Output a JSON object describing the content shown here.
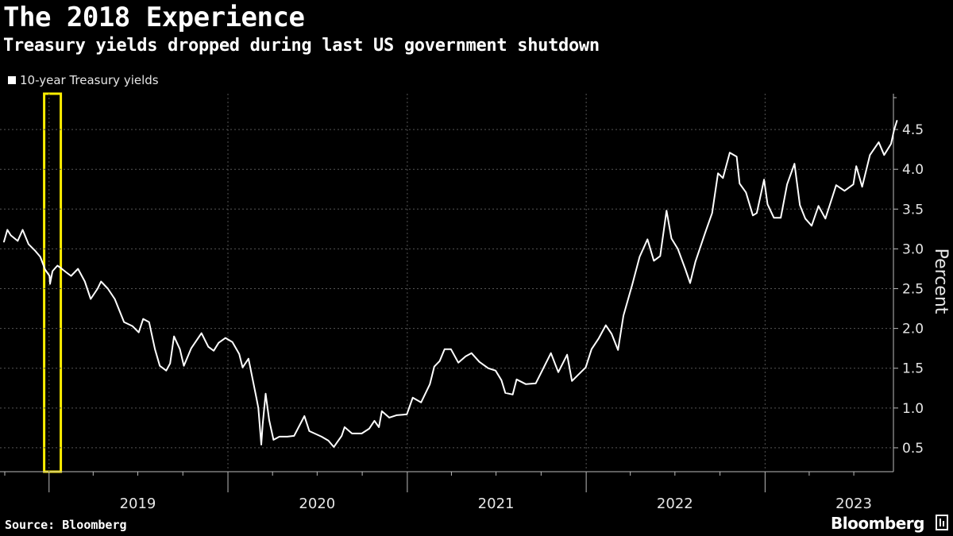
{
  "title": "The 2018 Experience",
  "subtitle": "Treasury yields dropped during last US government shutdown",
  "legend": {
    "label": "10-year Treasury yields",
    "color": "#ffffff"
  },
  "footer": {
    "source": "Source: Bloomberg",
    "brand": "Bloomberg"
  },
  "colors": {
    "background": "#000000",
    "line": "#ffffff",
    "highlight": "#ffee00",
    "grid": "#555555"
  },
  "chart_data": {
    "type": "line",
    "ylabel": "Percent",
    "xlabel": "",
    "ylim": [
      0.2,
      4.95
    ],
    "xlim": [
      "2018-10-01",
      "2023-09-28"
    ],
    "y_ticks": [
      "0.5",
      "1.0",
      "1.5",
      "2.0",
      "2.5",
      "3.0",
      "3.5",
      "4.0",
      "4.5"
    ],
    "x_tick_labels": [
      "2019",
      "2020",
      "2021",
      "2022",
      "2023"
    ],
    "y_axis_position": "right",
    "grid": true,
    "legend_position": "top-left",
    "highlight_period": {
      "start": "2018-12-22",
      "end": "2019-01-25"
    },
    "series": [
      {
        "name": "10-year Treasury yields",
        "points": [
          [
            "2018-10-01",
            3.09
          ],
          [
            "2018-10-08",
            3.24
          ],
          [
            "2018-10-15",
            3.17
          ],
          [
            "2018-10-29",
            3.1
          ],
          [
            "2018-11-08",
            3.24
          ],
          [
            "2018-11-20",
            3.06
          ],
          [
            "2018-12-03",
            2.98
          ],
          [
            "2018-12-14",
            2.9
          ],
          [
            "2018-12-24",
            2.74
          ],
          [
            "2019-01-02",
            2.66
          ],
          [
            "2019-01-03",
            2.56
          ],
          [
            "2019-01-08",
            2.72
          ],
          [
            "2019-01-18",
            2.79
          ],
          [
            "2019-01-25",
            2.76
          ],
          [
            "2019-02-04",
            2.71
          ],
          [
            "2019-02-15",
            2.66
          ],
          [
            "2019-03-01",
            2.75
          ],
          [
            "2019-03-15",
            2.59
          ],
          [
            "2019-03-27",
            2.37
          ],
          [
            "2019-04-10",
            2.5
          ],
          [
            "2019-04-17",
            2.59
          ],
          [
            "2019-05-01",
            2.5
          ],
          [
            "2019-05-15",
            2.37
          ],
          [
            "2019-06-03",
            2.08
          ],
          [
            "2019-06-20",
            2.03
          ],
          [
            "2019-07-03",
            1.95
          ],
          [
            "2019-07-12",
            2.12
          ],
          [
            "2019-07-24",
            2.08
          ],
          [
            "2019-08-05",
            1.74
          ],
          [
            "2019-08-15",
            1.53
          ],
          [
            "2019-08-28",
            1.47
          ],
          [
            "2019-09-05",
            1.56
          ],
          [
            "2019-09-13",
            1.9
          ],
          [
            "2019-09-25",
            1.74
          ],
          [
            "2019-10-03",
            1.53
          ],
          [
            "2019-10-18",
            1.75
          ],
          [
            "2019-11-08",
            1.94
          ],
          [
            "2019-11-22",
            1.77
          ],
          [
            "2019-12-03",
            1.72
          ],
          [
            "2019-12-13",
            1.82
          ],
          [
            "2019-12-27",
            1.88
          ],
          [
            "2020-01-10",
            1.83
          ],
          [
            "2020-01-24",
            1.68
          ],
          [
            "2020-01-31",
            1.51
          ],
          [
            "2020-02-12",
            1.62
          ],
          [
            "2020-02-28",
            1.13
          ],
          [
            "2020-03-03",
            1.0
          ],
          [
            "2020-03-09",
            0.54
          ],
          [
            "2020-03-12",
            0.8
          ],
          [
            "2020-03-18",
            1.18
          ],
          [
            "2020-03-25",
            0.85
          ],
          [
            "2020-04-03",
            0.6
          ],
          [
            "2020-04-15",
            0.64
          ],
          [
            "2020-05-01",
            0.64
          ],
          [
            "2020-05-15",
            0.65
          ],
          [
            "2020-06-05",
            0.9
          ],
          [
            "2020-06-15",
            0.71
          ],
          [
            "2020-07-10",
            0.64
          ],
          [
            "2020-07-24",
            0.59
          ],
          [
            "2020-08-04",
            0.51
          ],
          [
            "2020-08-20",
            0.65
          ],
          [
            "2020-08-26",
            0.76
          ],
          [
            "2020-09-10",
            0.68
          ],
          [
            "2020-09-30",
            0.68
          ],
          [
            "2020-10-15",
            0.74
          ],
          [
            "2020-10-26",
            0.84
          ],
          [
            "2020-11-04",
            0.76
          ],
          [
            "2020-11-10",
            0.96
          ],
          [
            "2020-11-25",
            0.88
          ],
          [
            "2020-12-10",
            0.91
          ],
          [
            "2020-12-31",
            0.92
          ],
          [
            "2021-01-12",
            1.13
          ],
          [
            "2021-01-29",
            1.07
          ],
          [
            "2021-02-16",
            1.3
          ],
          [
            "2021-02-25",
            1.52
          ],
          [
            "2021-03-08",
            1.59
          ],
          [
            "2021-03-18",
            1.74
          ],
          [
            "2021-03-31",
            1.74
          ],
          [
            "2021-04-15",
            1.57
          ],
          [
            "2021-04-30",
            1.65
          ],
          [
            "2021-05-12",
            1.69
          ],
          [
            "2021-05-28",
            1.58
          ],
          [
            "2021-06-15",
            1.5
          ],
          [
            "2021-06-30",
            1.47
          ],
          [
            "2021-07-12",
            1.35
          ],
          [
            "2021-07-20",
            1.19
          ],
          [
            "2021-08-04",
            1.17
          ],
          [
            "2021-08-12",
            1.36
          ],
          [
            "2021-08-31",
            1.3
          ],
          [
            "2021-09-20",
            1.31
          ],
          [
            "2021-10-04",
            1.48
          ],
          [
            "2021-10-21",
            1.69
          ],
          [
            "2021-11-05",
            1.45
          ],
          [
            "2021-11-23",
            1.67
          ],
          [
            "2021-12-03",
            1.34
          ],
          [
            "2021-12-31",
            1.51
          ],
          [
            "2022-01-12",
            1.74
          ],
          [
            "2022-01-26",
            1.87
          ],
          [
            "2022-02-10",
            2.04
          ],
          [
            "2022-02-22",
            1.93
          ],
          [
            "2022-03-07",
            1.73
          ],
          [
            "2022-03-18",
            2.16
          ],
          [
            "2022-04-05",
            2.55
          ],
          [
            "2022-04-20",
            2.9
          ],
          [
            "2022-05-06",
            3.12
          ],
          [
            "2022-05-19",
            2.85
          ],
          [
            "2022-06-01",
            2.91
          ],
          [
            "2022-06-14",
            3.48
          ],
          [
            "2022-06-24",
            3.13
          ],
          [
            "2022-07-07",
            3.0
          ],
          [
            "2022-07-22",
            2.75
          ],
          [
            "2022-08-01",
            2.57
          ],
          [
            "2022-08-12",
            2.84
          ],
          [
            "2022-08-31",
            3.19
          ],
          [
            "2022-09-15",
            3.45
          ],
          [
            "2022-09-27",
            3.95
          ],
          [
            "2022-10-07",
            3.89
          ],
          [
            "2022-10-21",
            4.21
          ],
          [
            "2022-11-04",
            4.16
          ],
          [
            "2022-11-10",
            3.82
          ],
          [
            "2022-11-23",
            3.71
          ],
          [
            "2022-12-07",
            3.42
          ],
          [
            "2022-12-15",
            3.45
          ],
          [
            "2022-12-30",
            3.87
          ],
          [
            "2023-01-06",
            3.56
          ],
          [
            "2023-01-19",
            3.39
          ],
          [
            "2023-02-02",
            3.39
          ],
          [
            "2023-02-15",
            3.81
          ],
          [
            "2023-03-02",
            4.07
          ],
          [
            "2023-03-13",
            3.55
          ],
          [
            "2023-03-24",
            3.38
          ],
          [
            "2023-04-06",
            3.29
          ],
          [
            "2023-04-20",
            3.54
          ],
          [
            "2023-05-04",
            3.38
          ],
          [
            "2023-05-26",
            3.8
          ],
          [
            "2023-06-12",
            3.73
          ],
          [
            "2023-06-30",
            3.81
          ],
          [
            "2023-07-06",
            4.04
          ],
          [
            "2023-07-18",
            3.78
          ],
          [
            "2023-08-03",
            4.18
          ],
          [
            "2023-08-21",
            4.34
          ],
          [
            "2023-09-01",
            4.18
          ],
          [
            "2023-09-15",
            4.32
          ],
          [
            "2023-09-21",
            4.49
          ],
          [
            "2023-09-27",
            4.61
          ]
        ]
      }
    ]
  }
}
